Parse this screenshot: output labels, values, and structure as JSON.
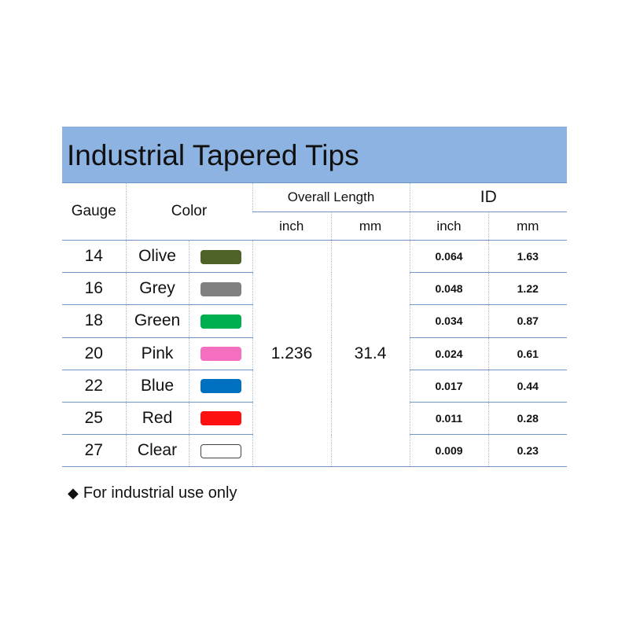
{
  "title": "Industrial Tapered Tips",
  "headers": {
    "gauge": "Gauge",
    "color": "Color",
    "overall_length": "Overall Length",
    "id": "ID",
    "inch": "inch",
    "mm": "mm"
  },
  "overall_length": {
    "inch": "1.236",
    "mm": "31.4"
  },
  "rows": [
    {
      "gauge": "14",
      "color": "Olive",
      "swatch": "#4f6228",
      "id_inch": "0.064",
      "id_mm": "1.63"
    },
    {
      "gauge": "16",
      "color": "Grey",
      "swatch": "#808080",
      "id_inch": "0.048",
      "id_mm": "1.22"
    },
    {
      "gauge": "18",
      "color": "Green",
      "swatch": "#00b050",
      "id_inch": "0.034",
      "id_mm": "0.87"
    },
    {
      "gauge": "20",
      "color": "Pink",
      "swatch": "#f56fc0",
      "id_inch": "0.024",
      "id_mm": "0.61"
    },
    {
      "gauge": "22",
      "color": "Blue",
      "swatch": "#0070c0",
      "id_inch": "0.017",
      "id_mm": "0.44"
    },
    {
      "gauge": "25",
      "color": "Red",
      "swatch": "#fe1010",
      "id_inch": "0.011",
      "id_mm": "0.28"
    },
    {
      "gauge": "27",
      "color": "Clear",
      "swatch": "#ffffff",
      "id_inch": "0.009",
      "id_mm": "0.23"
    }
  ],
  "note": {
    "bullet": "◆",
    "text": "For industrial use only"
  }
}
